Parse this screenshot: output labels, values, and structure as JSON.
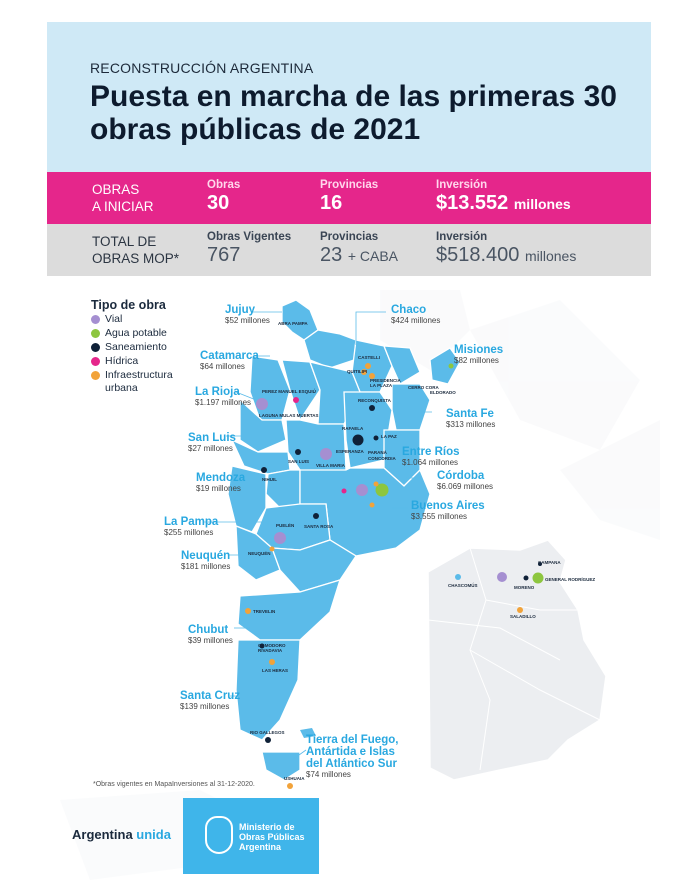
{
  "header": {
    "kicker": "RECONSTRUCCIÓN ARGENTINA",
    "title": "Puesta en marcha de las primeras 30 obras públicas de 2021"
  },
  "obras_iniciar": {
    "label_line1": "OBRAS",
    "label_line2": "A INICIAR",
    "obras_key": "Obras",
    "obras_value": "30",
    "provincias_key": "Provincias",
    "provincias_value": "16",
    "inversion_key": "Inversión",
    "inversion_value": "$13.552",
    "inversion_unit": "millones"
  },
  "total_mop": {
    "label_line1": "TOTAL DE",
    "label_line2": "OBRAS MOP*",
    "obras_key": "Obras Vigentes",
    "obras_value": "767",
    "provincias_key": "Provincias",
    "provincias_value": "23",
    "provincias_extra": "+ CABA",
    "inversion_key": "Inversión",
    "inversion_value": "$518.400",
    "inversion_unit": "millones"
  },
  "legend": {
    "title": "Tipo de obra",
    "items": [
      {
        "label": "Vial",
        "color": "#a58fd1"
      },
      {
        "label": "Agua potable",
        "color": "#8dc63f"
      },
      {
        "label": "Saneamiento",
        "color": "#0f2138"
      },
      {
        "label": "Hídrica",
        "color": "#e5268b"
      },
      {
        "label": "Infraestructura urbana",
        "color": "#f2a33a"
      }
    ]
  },
  "provinces": {
    "jujuy": {
      "name": "Jujuy",
      "amount": "$52 millones"
    },
    "chaco": {
      "name": "Chaco",
      "amount": "$424 millones"
    },
    "misiones": {
      "name": "Misiones",
      "amount": "$82 millones"
    },
    "catamarca": {
      "name": "Catamarca",
      "amount": "$64 millones"
    },
    "la_rioja": {
      "name": "La Rioja",
      "amount": "$1.197 millones"
    },
    "santa_fe": {
      "name": "Santa Fe",
      "amount": "$313 millones"
    },
    "san_luis": {
      "name": "San Luis",
      "amount": "$27 millones"
    },
    "entre_rios": {
      "name": "Entre Ríos",
      "amount": "$1.064 millones"
    },
    "mendoza": {
      "name": "Mendoza",
      "amount": "$19 millones"
    },
    "cordoba": {
      "name": "Córdoba",
      "amount": "$6.069 millones"
    },
    "buenos_aires": {
      "name": "Buenos Aires",
      "amount": "$3.555 millones"
    },
    "la_pampa": {
      "name": "La Pampa",
      "amount": "$255 millones"
    },
    "neuquen": {
      "name": "Neuquén",
      "amount": "$181 millones"
    },
    "chubut": {
      "name": "Chubut",
      "amount": "$39 millones"
    },
    "santa_cruz": {
      "name": "Santa Cruz",
      "amount": "$139 millones"
    },
    "tierra_del_fuego": {
      "name_line1": "Tierra del Fuego,",
      "name_line2": "Antártida e Islas",
      "name_line3": "del Atlántico Sur",
      "amount": "$74 millones"
    }
  },
  "cities": {
    "abra_pampa": "ABRA PAMPA",
    "castelli": "CASTELLI",
    "quitilipi": "QUITILIPI",
    "presidencia": "PRESIDENCIA LA PLAZA",
    "cerro_cora": "CERRO CORA",
    "eldorado": "ELDORADO",
    "reconquista": "RECONQUISTA",
    "rafaela": "RAFAELA",
    "la_paz": "LA PAZ",
    "esperanza": "ESPERANZA",
    "parana": "PARANÁ",
    "concordia": "CONCORDIA",
    "perez": "PEREZ MANUEL ESQUIÚ",
    "laguna": "LAGUNA MULAS MUERTAS",
    "villa_maria": "VILLA MARIA",
    "san_luis_city": "SAN LUIS",
    "nihuil": "NIHUIL",
    "puelen": "PUELÉN",
    "santa_rosa": "SANTA ROSA",
    "neuquen_city": "NEUQUÉN",
    "trevelin": "TREVELIN",
    "comodoro": "COMODORO RIVADAVIA",
    "las_heras": "LAS HERAS",
    "rio_gallegos": "RIO GALLEGOS",
    "ushuaia": "USHUAIA",
    "chascomus": "CHASCOMÚS",
    "saladillo": "SALADILLO",
    "campana": "CAMPANA",
    "moreno": "MORENO",
    "general_rodriguez": "GENERAL RODRÍGUEZ"
  },
  "footnote": "*Obras vigentes en MapaInversiones al 31-12-2020.",
  "footer": {
    "brand_a": "Argentina",
    "brand_b": "unida",
    "ministry_line1": "Ministerio de",
    "ministry_line2": "Obras Públicas",
    "ministry_line3": "Argentina"
  }
}
